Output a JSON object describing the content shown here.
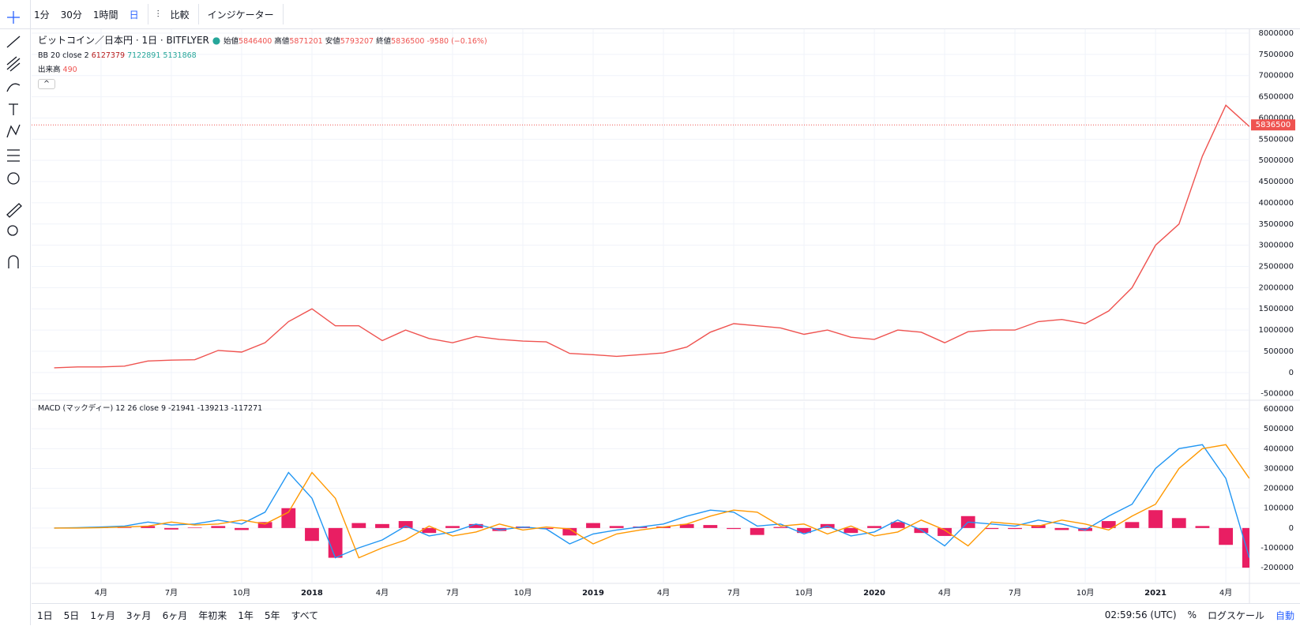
{
  "toolbar": {
    "intervals": [
      "1分",
      "30分",
      "1時間",
      "日"
    ],
    "compare": "比較",
    "indicators": "インジケーター"
  },
  "legend": {
    "symbol": "ビットコイン／日本円 · 1日 · BITFLYER",
    "open_label": "始値",
    "open": 5846400,
    "high_label": "高値",
    "high": 5871201,
    "low_label": "安値",
    "low": 5793207,
    "close_label": "終値",
    "close": 5836500,
    "change": -9580,
    "change_pct": "(−0.16%)",
    "bb_label": "BB 20 close 2",
    "bb_values": [
      6127379,
      7122891,
      5131868
    ],
    "volume_label": "出来高",
    "volume": 490,
    "macd_label": "MACD (マックディー) 12 26 close 9",
    "macd_values": [
      -21941,
      -139213,
      -117271
    ]
  },
  "chart_data": [
    {
      "type": "line",
      "categories": [
        null,
        null,
        "4月",
        null,
        null,
        "7月",
        null,
        null,
        "10月",
        null,
        null,
        "2018",
        null,
        null,
        "4月",
        null,
        null,
        "7月",
        null,
        null,
        "10月",
        null,
        null,
        "2019",
        null,
        null,
        "4月",
        null,
        null,
        "7月",
        null,
        null,
        "10月",
        null,
        null,
        "2020",
        null,
        null,
        "4月",
        null,
        null,
        "7月",
        null,
        null,
        "10月",
        null,
        null,
        "2021",
        null,
        null,
        "4月",
        null
      ],
      "series": [
        {
          "name": "ビットコイン／日本円",
          "color": "#ef5350",
          "values": [
            110000,
            130000,
            130000,
            150000,
            270000,
            290000,
            300000,
            520000,
            480000,
            700000,
            1200000,
            1500000,
            1100000,
            1100000,
            750000,
            1000000,
            800000,
            700000,
            850000,
            780000,
            740000,
            720000,
            450000,
            420000,
            380000,
            420000,
            460000,
            600000,
            950000,
            1150000,
            1100000,
            1050000,
            900000,
            1000000,
            830000,
            780000,
            1000000,
            950000,
            700000,
            960000,
            1000000,
            1000000,
            1200000,
            1250000,
            1150000,
            1450000,
            2000000,
            3000000,
            3500000,
            5100000,
            6300000,
            5800000
          ]
        }
      ],
      "last_price": 5836500,
      "ylim": [
        -636000,
        8093000
      ],
      "yticks": [
        -500000,
        0,
        500000,
        1000000,
        1500000,
        2000000,
        2500000,
        3000000,
        3500000,
        4000000,
        4500000,
        5000000,
        5500000,
        6000000,
        6500000,
        7000000,
        7500000,
        8000000
      ],
      "grid": true
    },
    {
      "type": "line",
      "series": [
        {
          "name": "Histogram",
          "type": "bar",
          "color": "#e91e63",
          "values": [
            0,
            1000,
            1500,
            2500,
            10000,
            -7500,
            2500,
            10000,
            -10000,
            30000,
            100000,
            -65000,
            -150000,
            25000,
            20000,
            35000,
            -25000,
            10000,
            20000,
            -15000,
            7500,
            -5000,
            -37500,
            25000,
            10000,
            7500,
            7500,
            20000,
            15000,
            -5000,
            -35000,
            5000,
            -25000,
            20000,
            -25000,
            10000,
            30000,
            -25000,
            -40000,
            60000,
            -5000,
            -5000,
            15000,
            -10000,
            -15000,
            35000,
            30000,
            90000,
            50000,
            10000,
            -85000,
            -200000
          ]
        },
        {
          "name": "MACD",
          "color": "#2196f3",
          "values": [
            0,
            2000,
            5000,
            10000,
            30000,
            15000,
            20000,
            40000,
            20000,
            80000,
            280000,
            150000,
            -150000,
            -100000,
            -60000,
            10000,
            -40000,
            -20000,
            20000,
            -10000,
            5000,
            -5000,
            -80000,
            -30000,
            -10000,
            5000,
            20000,
            60000,
            90000,
            80000,
            10000,
            20000,
            -30000,
            10000,
            -40000,
            -20000,
            40000,
            -10000,
            -90000,
            30000,
            20000,
            10000,
            40000,
            20000,
            -10000,
            60000,
            120000,
            300000,
            400000,
            420000,
            250000,
            -150000
          ]
        },
        {
          "name": "Signal",
          "color": "#ff9800",
          "values": [
            0,
            0,
            2000,
            5000,
            10000,
            30000,
            15000,
            20000,
            40000,
            20000,
            80000,
            280000,
            150000,
            -150000,
            -100000,
            -60000,
            10000,
            -40000,
            -20000,
            20000,
            -10000,
            5000,
            -5000,
            -80000,
            -30000,
            -10000,
            5000,
            20000,
            60000,
            90000,
            80000,
            10000,
            20000,
            -30000,
            10000,
            -40000,
            -20000,
            40000,
            -10000,
            -90000,
            30000,
            20000,
            10000,
            40000,
            20000,
            -10000,
            60000,
            120000,
            300000,
            400000,
            420000,
            250000
          ]
        }
      ],
      "ylim": [
        -279000,
        636000
      ],
      "yticks": [
        -200000,
        -100000,
        0,
        100000,
        200000,
        300000,
        400000,
        500000,
        600000
      ],
      "grid": true
    }
  ],
  "footer": {
    "ranges": [
      "1日",
      "5日",
      "1ヶ月",
      "3ヶ月",
      "6ヶ月",
      "年初来",
      "1年",
      "5年",
      "すべて"
    ],
    "time": "02:59:56 (UTC)",
    "percent": "%",
    "log": "ログスケール",
    "auto": "自動"
  }
}
